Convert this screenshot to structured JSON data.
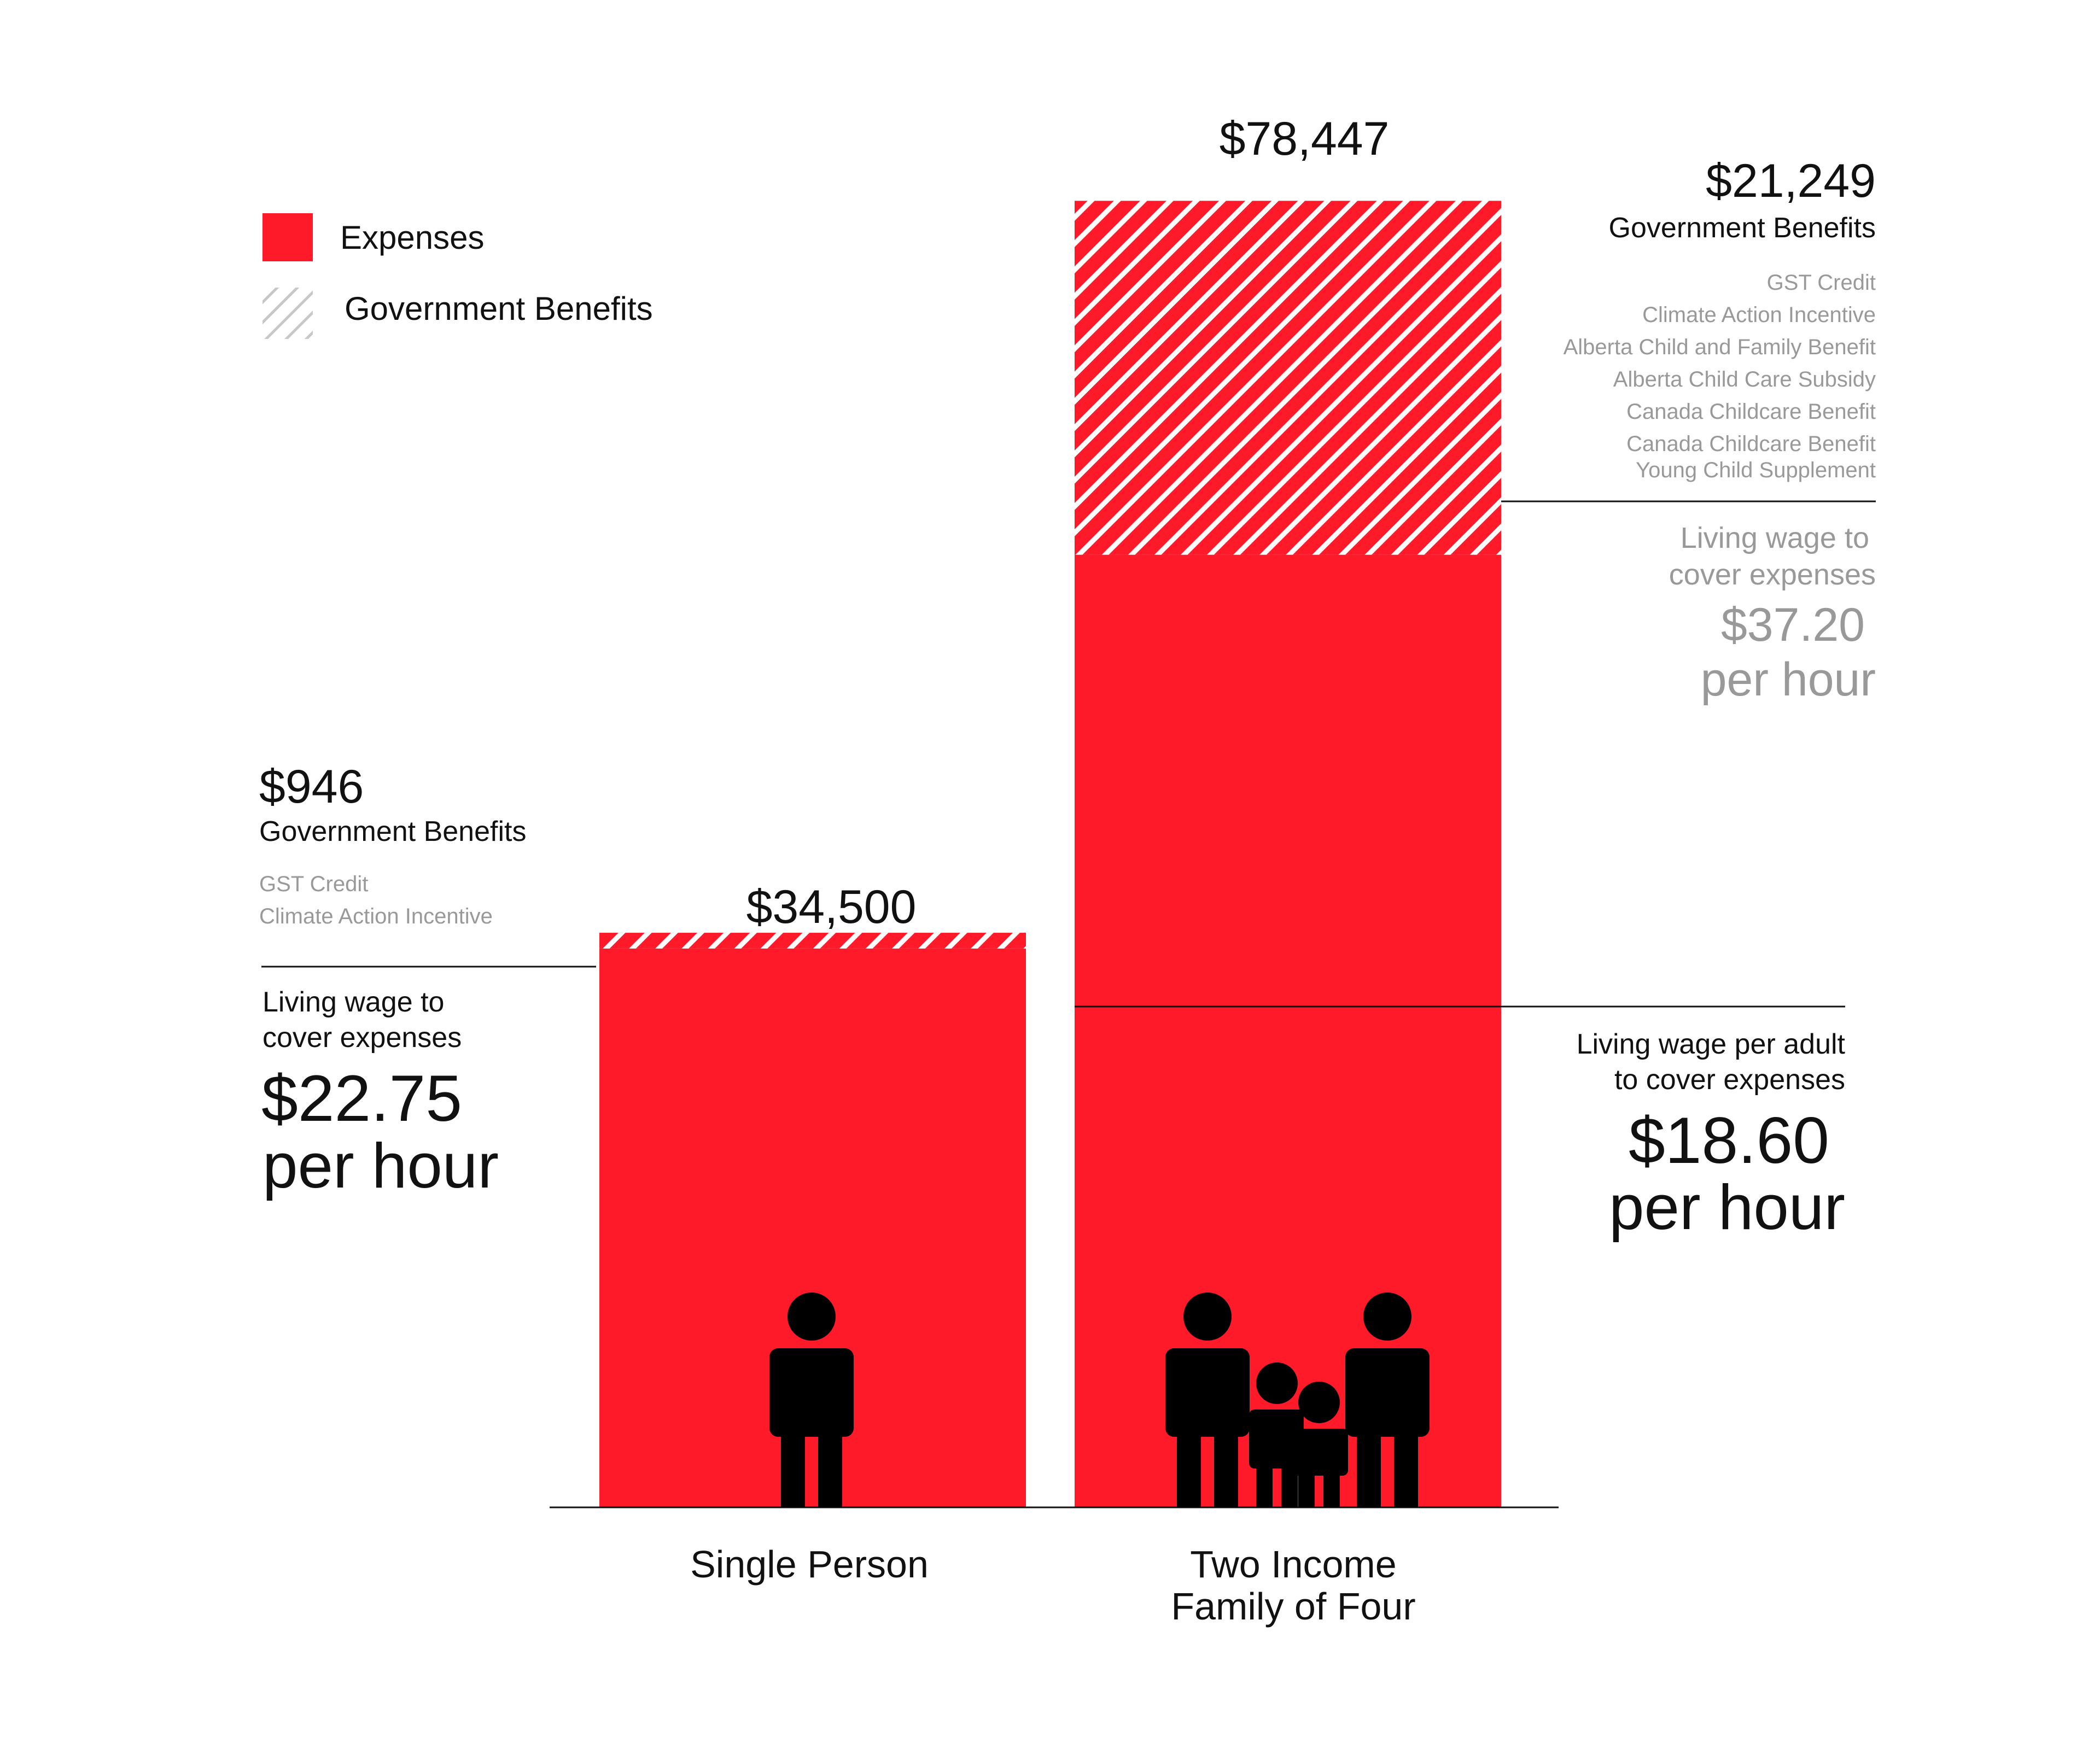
{
  "legend": {
    "items": [
      {
        "label": "Expenses",
        "style": "solid"
      },
      {
        "label": "Government Benefits",
        "style": "hatch"
      }
    ]
  },
  "colors": {
    "expenses": "#ff1a2a",
    "benefits_hatch_bg": "#ff1a2a",
    "benefits_hatch_line": "#ffffff",
    "legend_hatch_line": "#c8c8c8",
    "text_dark": "#111111",
    "text_gray": "#999999",
    "icon": "#000000"
  },
  "icons": {
    "single": "person-icon",
    "family": "family-icon"
  },
  "chart_data": {
    "type": "bar",
    "stacked": true,
    "categories": [
      "Single Person",
      "Two Income Family of Four"
    ],
    "category_labels": [
      [
        "Single Person"
      ],
      [
        "Two Income",
        "Family of Four"
      ]
    ],
    "series": [
      {
        "name": "Expenses",
        "values": [
          33554,
          57198
        ]
      },
      {
        "name": "Government Benefits",
        "values": [
          946,
          21249
        ]
      }
    ],
    "totals": [
      34500,
      78447
    ],
    "total_labels": [
      "$34,500",
      "$78,447"
    ],
    "ylim": [
      0,
      80000
    ],
    "grid": false,
    "legend_position": "top-left"
  },
  "annotations": {
    "single": {
      "benefit_amount": "$946",
      "benefit_title": "Government Benefits",
      "benefit_items": [
        "GST Credit",
        "Climate Action Incentive"
      ],
      "wage_caption": [
        "Living wage to",
        "cover expenses"
      ],
      "wage_value": "$22.75",
      "wage_unit": "per hour"
    },
    "family": {
      "benefit_amount": "$21,249",
      "benefit_title": "Government Benefits",
      "benefit_items": [
        "GST Credit",
        "Climate Action Incentive",
        "Alberta Child and Family Benefit",
        "Alberta Child Care Subsidy",
        "Canada Childcare Benefit",
        "Canada Childcare Benefit",
        "Young Child Supplement"
      ],
      "wage_caption": [
        "Living wage to",
        "cover expenses"
      ],
      "wage_value": "$37.20",
      "wage_unit": "per hour",
      "adult_wage_caption": [
        "Living wage per adult",
        "to cover expenses"
      ],
      "adult_wage_value": "$18.60",
      "adult_wage_unit": "per hour"
    }
  }
}
